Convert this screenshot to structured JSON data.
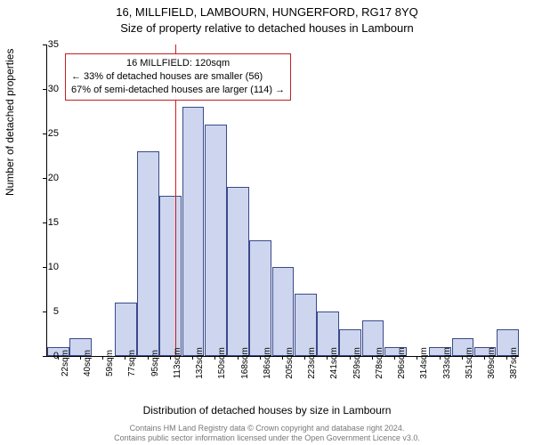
{
  "chart": {
    "type": "histogram",
    "title_main": "16, MILLFIELD, LAMBOURN, HUNGERFORD, RG17 8YQ",
    "title_sub": "Size of property relative to detached houses in Lambourn",
    "ylabel": "Number of detached properties",
    "xlabel": "Distribution of detached houses by size in Lambourn",
    "ylim": [
      0,
      35
    ],
    "ytick_step": 5,
    "yticks": [
      0,
      5,
      10,
      15,
      20,
      25,
      30,
      35
    ],
    "xtick_labels": [
      "22sqm",
      "40sqm",
      "59sqm",
      "77sqm",
      "95sqm",
      "113sqm",
      "132sqm",
      "150sqm",
      "168sqm",
      "186sqm",
      "205sqm",
      "223sqm",
      "241sqm",
      "259sqm",
      "278sqm",
      "296sqm",
      "314sqm",
      "333sqm",
      "351sqm",
      "369sqm",
      "387sqm"
    ],
    "bar_values": [
      1,
      2,
      0,
      6,
      23,
      18,
      28,
      26,
      19,
      13,
      10,
      7,
      5,
      3,
      4,
      1,
      0,
      1,
      2,
      1,
      3
    ],
    "bar_fill_color": "#cdd6ee",
    "bar_border_color": "#3a4a8a",
    "background_color": "#ffffff",
    "reference_line": {
      "index_between": 5,
      "color": "#cc1e1e"
    },
    "annotation": {
      "line1": "16 MILLFIELD: 120sqm",
      "line2": "← 33% of detached houses are smaller (56)",
      "line3": "67% of semi-detached houses are larger (114) →",
      "border_color": "#c02020"
    },
    "footer_line1": "Contains HM Land Registry data © Crown copyright and database right 2024.",
    "footer_line2": "Contains public sector information licensed under the Open Government Licence v3.0.",
    "title_fontsize": 13,
    "label_fontsize": 12,
    "tick_fontsize": 11
  }
}
